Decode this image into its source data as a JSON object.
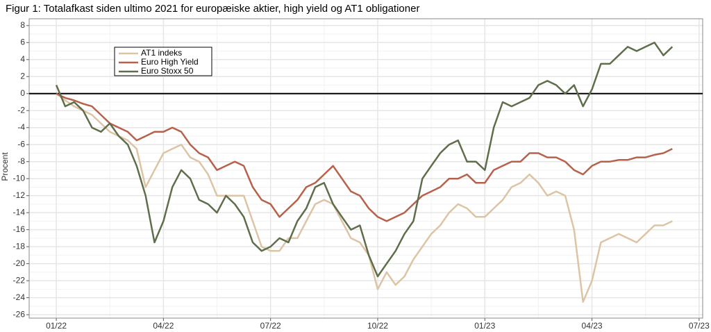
{
  "chart_data": {
    "type": "line",
    "title": "Figur 1: Totalafkast siden ultimo 2021 for europæiske aktier, high yield og AT1 obligationer",
    "y_label": "Procent",
    "x": [
      0,
      0.25,
      0.5,
      0.75,
      1,
      1.25,
      1.5,
      1.75,
      2,
      2.25,
      2.5,
      2.75,
      3,
      3.25,
      3.5,
      3.75,
      4,
      4.25,
      4.5,
      4.75,
      5,
      5.25,
      5.5,
      5.75,
      6,
      6.25,
      6.5,
      6.75,
      7,
      7.25,
      7.5,
      7.75,
      8,
      8.25,
      8.5,
      8.75,
      9,
      9.25,
      9.5,
      9.75,
      10,
      10.25,
      10.5,
      10.75,
      11,
      11.25,
      11.5,
      11.75,
      12,
      12.25,
      12.5,
      12.75,
      13,
      13.25,
      13.5,
      13.75,
      14,
      14.25,
      14.5,
      14.75,
      15,
      15.25,
      15.5,
      15.75,
      16,
      16.25,
      16.5,
      16.75,
      17,
      17.25
    ],
    "series": [
      {
        "name": "AT1 indeks",
        "color": "#dcc4a4",
        "values": [
          0,
          -0.8,
          -1.5,
          -2,
          -2.5,
          -3.5,
          -4.5,
          -5,
          -5.5,
          -6.5,
          -11,
          -9,
          -7,
          -6.5,
          -6,
          -7.5,
          -8,
          -9.5,
          -12,
          -12,
          -12,
          -12,
          -15,
          -18,
          -18.5,
          -18.5,
          -17,
          -17,
          -15,
          -13,
          -12.5,
          -13,
          -15,
          -17,
          -17.5,
          -19,
          -23,
          -21,
          -22.5,
          -21.5,
          -19.5,
          -18,
          -16.5,
          -15.5,
          -14,
          -13,
          -13.5,
          -14.5,
          -14.5,
          -13.5,
          -12.5,
          -11,
          -10.5,
          -9.5,
          -10.5,
          -12,
          -11.5,
          -12,
          -16,
          -24.5,
          -22,
          -17.5,
          -17,
          -16.5,
          -17,
          -17.5,
          -16.5,
          -15.5,
          -15.5,
          -15
        ]
      },
      {
        "name": "Euro High Yield",
        "color": "#b8614a",
        "values": [
          0,
          -0.5,
          -0.8,
          -1.2,
          -1.5,
          -2.5,
          -3.5,
          -4,
          -4.5,
          -5.5,
          -5,
          -4.5,
          -4.5,
          -4,
          -4.5,
          -6,
          -7,
          -7.5,
          -9,
          -8.5,
          -8,
          -8.5,
          -11,
          -12.5,
          -13,
          -14.5,
          -13.5,
          -12.5,
          -11,
          -10.5,
          -9.5,
          -8.5,
          -10,
          -11.5,
          -12,
          -13.5,
          -14.5,
          -15,
          -14.5,
          -14,
          -13,
          -12,
          -11.5,
          -11,
          -10,
          -10,
          -9.5,
          -10.5,
          -10.5,
          -9,
          -8.5,
          -8,
          -8,
          -7,
          -7,
          -7.5,
          -7.5,
          -8,
          -9,
          -9.5,
          -8.5,
          -8,
          -8,
          -7.8,
          -7.8,
          -7.5,
          -7.5,
          -7.2,
          -7,
          -6.5
        ]
      },
      {
        "name": "Euro Stoxx 50",
        "color": "#5f6e4a",
        "values": [
          1,
          -1.5,
          -1,
          -2,
          -4,
          -4.5,
          -3.5,
          -5,
          -6,
          -8.5,
          -12,
          -17.5,
          -15,
          -11,
          -9,
          -10,
          -12.5,
          -13,
          -14,
          -12,
          -13,
          -14.5,
          -17.5,
          -18.5,
          -18,
          -17,
          -17.5,
          -15,
          -13.5,
          -11,
          -10.5,
          -13,
          -14.5,
          -16,
          -15.5,
          -19,
          -21.5,
          -20,
          -18.5,
          -16.5,
          -15,
          -10,
          -8.5,
          -7,
          -6,
          -5.5,
          -8,
          -8,
          -9,
          -4,
          -1,
          -1.5,
          -1,
          -0.5,
          1,
          1.5,
          1,
          0,
          1,
          -1.5,
          0.5,
          3.5,
          3.5,
          4.5,
          5.5,
          5,
          5.5,
          6,
          4.5,
          5.5
        ]
      }
    ],
    "xlim": [
      -0.76,
      18.1
    ],
    "xticks": [
      {
        "value": 0,
        "label": "01/22"
      },
      {
        "value": 3,
        "label": "04/22"
      },
      {
        "value": 6,
        "label": "07/22"
      },
      {
        "value": 9,
        "label": "10/22"
      },
      {
        "value": 12,
        "label": "01/23"
      },
      {
        "value": 15,
        "label": "04/23"
      },
      {
        "value": 18,
        "label": "07/23"
      }
    ],
    "ylim": [
      -26.4,
      8.8
    ],
    "yticks": [
      -26,
      -24,
      -22,
      -20,
      -18,
      -16,
      -14,
      -12,
      -10,
      -8,
      -6,
      -4,
      -2,
      0,
      2,
      4,
      6,
      8
    ],
    "hline": 0,
    "grid": true
  }
}
